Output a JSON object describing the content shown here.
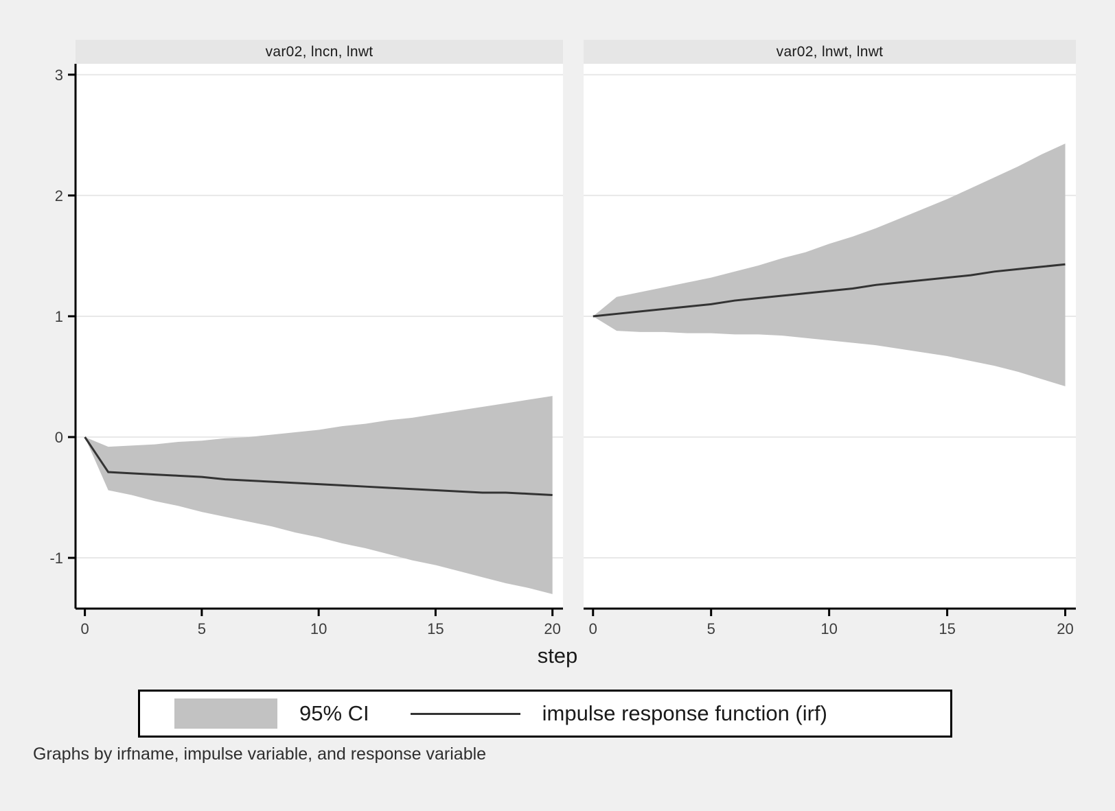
{
  "figure": {
    "background": "#f0f0f0",
    "plot_bg": "#ffffff",
    "band_color": "#c2c2c2",
    "line_color": "#333333",
    "grid_color": "#e8e8e8",
    "axis_color": "#000000",
    "tick_label_color": "#3c3c3c",
    "title_strip_bg": "#e6e6e6"
  },
  "xlabel": "step",
  "legend": {
    "ci_label": "95% CI",
    "irf_label": "impulse response function (irf)"
  },
  "note": "Graphs by irfname, impulse variable, and response variable",
  "chart_data": [
    {
      "type": "area",
      "title": "var02, lncn, lnwt",
      "x": [
        0,
        1,
        2,
        3,
        4,
        5,
        6,
        7,
        8,
        9,
        10,
        11,
        12,
        13,
        14,
        15,
        16,
        17,
        18,
        19,
        20
      ],
      "series": [
        {
          "name": "irf",
          "values": [
            0,
            -0.29,
            -0.3,
            -0.31,
            -0.32,
            -0.33,
            -0.35,
            -0.36,
            -0.37,
            -0.38,
            -0.39,
            -0.4,
            -0.41,
            -0.42,
            -0.43,
            -0.44,
            -0.45,
            -0.46,
            -0.46,
            -0.47,
            -0.48
          ]
        },
        {
          "name": "ci_upper",
          "values": [
            0,
            -0.08,
            -0.07,
            -0.06,
            -0.04,
            -0.03,
            -0.01,
            0.0,
            0.02,
            0.04,
            0.06,
            0.09,
            0.11,
            0.14,
            0.16,
            0.19,
            0.22,
            0.25,
            0.28,
            0.31,
            0.34
          ]
        },
        {
          "name": "ci_lower",
          "values": [
            0,
            -0.44,
            -0.48,
            -0.53,
            -0.57,
            -0.62,
            -0.66,
            -0.7,
            -0.74,
            -0.79,
            -0.83,
            -0.88,
            -0.92,
            -0.97,
            -1.02,
            -1.06,
            -1.11,
            -1.16,
            -1.21,
            -1.25,
            -1.3
          ]
        }
      ],
      "xlim": [
        -0.4,
        20.45
      ],
      "ylim": [
        -1.42,
        3.09
      ],
      "x_ticks": [
        0,
        5,
        10,
        15,
        20
      ],
      "y_ticks": [
        -1,
        0,
        1,
        2,
        3
      ],
      "grid": true,
      "show_y_axis": true
    },
    {
      "type": "area",
      "title": "var02, lnwt, lnwt",
      "x": [
        0,
        1,
        2,
        3,
        4,
        5,
        6,
        7,
        8,
        9,
        10,
        11,
        12,
        13,
        14,
        15,
        16,
        17,
        18,
        19,
        20
      ],
      "series": [
        {
          "name": "irf",
          "values": [
            1.0,
            1.02,
            1.04,
            1.06,
            1.08,
            1.1,
            1.13,
            1.15,
            1.17,
            1.19,
            1.21,
            1.23,
            1.26,
            1.28,
            1.3,
            1.32,
            1.34,
            1.37,
            1.39,
            1.41,
            1.43
          ]
        },
        {
          "name": "ci_upper",
          "values": [
            1.0,
            1.16,
            1.2,
            1.24,
            1.28,
            1.32,
            1.37,
            1.42,
            1.48,
            1.53,
            1.6,
            1.66,
            1.73,
            1.81,
            1.89,
            1.97,
            2.06,
            2.15,
            2.24,
            2.34,
            2.43
          ]
        },
        {
          "name": "ci_lower",
          "values": [
            1.0,
            0.88,
            0.87,
            0.87,
            0.86,
            0.86,
            0.85,
            0.85,
            0.84,
            0.82,
            0.8,
            0.78,
            0.76,
            0.73,
            0.7,
            0.67,
            0.63,
            0.59,
            0.54,
            0.48,
            0.42
          ]
        }
      ],
      "xlim": [
        -0.4,
        20.45
      ],
      "ylim": [
        -1.42,
        3.09
      ],
      "x_ticks": [
        0,
        5,
        10,
        15,
        20
      ],
      "y_ticks": [
        -1,
        0,
        1,
        2,
        3
      ],
      "grid": true,
      "show_y_axis": false
    }
  ]
}
